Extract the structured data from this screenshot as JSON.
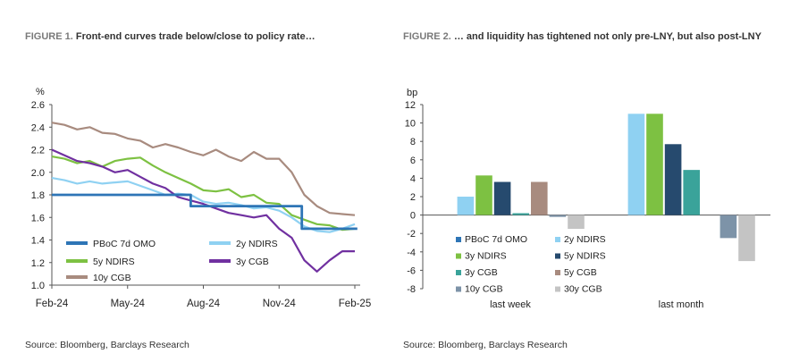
{
  "figure1": {
    "label": "FIGURE 1.",
    "title": "Front-end curves trade below/close to policy rate…"
  },
  "figure2": {
    "label": "FIGURE 2.",
    "title": "… and liquidity has tightened not only pre-LNY, but also post-LNY"
  },
  "source1": "Source: Bloomberg, Barclays Research",
  "source2": "Source: Bloomberg, Barclays Research",
  "chart_data": [
    {
      "type": "line",
      "title": "Front-end curves trade below/close to policy rate…",
      "ylabel": "%",
      "ylim": [
        1.0,
        2.6
      ],
      "yticks": [
        "1.0",
        "1.2",
        "1.4",
        "1.6",
        "1.8",
        "2.0",
        "2.2",
        "2.4",
        "2.6"
      ],
      "xticks": [
        "Feb-24",
        "May-24",
        "Aug-24",
        "Nov-24",
        "Feb-25"
      ],
      "grid": false,
      "legend": "bottom-left",
      "series": [
        {
          "name": "PBoC 7d OMO",
          "color": "#2e75b6",
          "step": true,
          "x": [
            0,
            5.5,
            5.5,
            9.9,
            9.9,
            12.1
          ],
          "values": [
            1.8,
            1.8,
            1.7,
            1.7,
            1.5,
            1.5
          ]
        },
        {
          "name": "2y NDIRS",
          "color": "#8fd1f2",
          "x": [
            0,
            0.5,
            1,
            1.5,
            2,
            2.5,
            3,
            3.5,
            4,
            4.5,
            5,
            5.5,
            6,
            6.5,
            7,
            7.5,
            8,
            8.5,
            9,
            9.5,
            10,
            10.5,
            11,
            11.5,
            12
          ],
          "values": [
            1.95,
            1.93,
            1.9,
            1.92,
            1.9,
            1.91,
            1.92,
            1.88,
            1.84,
            1.8,
            1.81,
            1.8,
            1.74,
            1.72,
            1.73,
            1.71,
            1.68,
            1.69,
            1.66,
            1.6,
            1.52,
            1.48,
            1.47,
            1.5,
            1.54
          ]
        },
        {
          "name": "5y NDIRS",
          "color": "#7dc142",
          "x": [
            0,
            0.5,
            1,
            1.5,
            2,
            2.5,
            3,
            3.5,
            4,
            4.5,
            5,
            5.5,
            6,
            6.5,
            7,
            7.5,
            8,
            8.5,
            9,
            9.5,
            10,
            10.5,
            11,
            11.5,
            12
          ],
          "values": [
            2.14,
            2.12,
            2.08,
            2.1,
            2.05,
            2.1,
            2.12,
            2.13,
            2.06,
            2.0,
            1.95,
            1.9,
            1.84,
            1.83,
            1.85,
            1.78,
            1.8,
            1.73,
            1.72,
            1.62,
            1.58,
            1.54,
            1.53,
            1.49,
            1.5
          ]
        },
        {
          "name": "3y CGB",
          "color": "#7030a0",
          "x": [
            0,
            0.5,
            1,
            1.5,
            2,
            2.5,
            3,
            3.5,
            4,
            4.5,
            5,
            5.5,
            6,
            6.5,
            7,
            7.5,
            8,
            8.5,
            9,
            9.5,
            10,
            10.5,
            11,
            11.5,
            12
          ],
          "values": [
            2.2,
            2.15,
            2.1,
            2.08,
            2.05,
            2.0,
            2.02,
            1.96,
            1.9,
            1.86,
            1.78,
            1.75,
            1.72,
            1.68,
            1.64,
            1.62,
            1.6,
            1.62,
            1.5,
            1.42,
            1.22,
            1.12,
            1.22,
            1.3,
            1.3
          ]
        },
        {
          "name": "10y CGB",
          "color": "#a88b7f",
          "x": [
            0,
            0.5,
            1,
            1.5,
            2,
            2.5,
            3,
            3.5,
            4,
            4.5,
            5,
            5.5,
            6,
            6.5,
            7,
            7.5,
            8,
            8.5,
            9,
            9.5,
            10,
            10.5,
            11,
            11.5,
            12
          ],
          "values": [
            2.44,
            2.42,
            2.38,
            2.4,
            2.35,
            2.34,
            2.3,
            2.28,
            2.22,
            2.25,
            2.22,
            2.18,
            2.15,
            2.2,
            2.14,
            2.1,
            2.18,
            2.12,
            2.12,
            2.0,
            1.8,
            1.7,
            1.64,
            1.63,
            1.62
          ]
        }
      ]
    },
    {
      "type": "bar",
      "ylabel": "bp",
      "ylim": [
        -8,
        12
      ],
      "yticks": [
        "12",
        "10",
        "8",
        "6",
        "4",
        "2",
        "0",
        "-2",
        "-4",
        "-6",
        "-8"
      ],
      "categories": [
        "last week",
        "last month"
      ],
      "grid": false,
      "legend": "bottom-left",
      "series": [
        {
          "name": "PBoC 7d OMO",
          "color": "#2e75b6",
          "values": [
            0,
            0
          ]
        },
        {
          "name": "2y NDIRS",
          "color": "#8fd1f2",
          "values": [
            2.0,
            11.0
          ]
        },
        {
          "name": "3y NDIRS",
          "color": "#7dc142",
          "values": [
            4.3,
            11.0
          ]
        },
        {
          "name": "5y NDIRS",
          "color": "#264a6e",
          "values": [
            3.6,
            7.7
          ]
        },
        {
          "name": "3y CGB",
          "color": "#3aa39a",
          "values": [
            0.2,
            4.9
          ]
        },
        {
          "name": "5y CGB",
          "color": "#a88b7f",
          "values": [
            3.6,
            0
          ]
        },
        {
          "name": "10y CGB",
          "color": "#7d93a8",
          "values": [
            -0.2,
            -2.5
          ]
        },
        {
          "name": "30y CGB",
          "color": "#c4c4c4",
          "values": [
            -1.5,
            -5.0
          ]
        }
      ]
    }
  ]
}
